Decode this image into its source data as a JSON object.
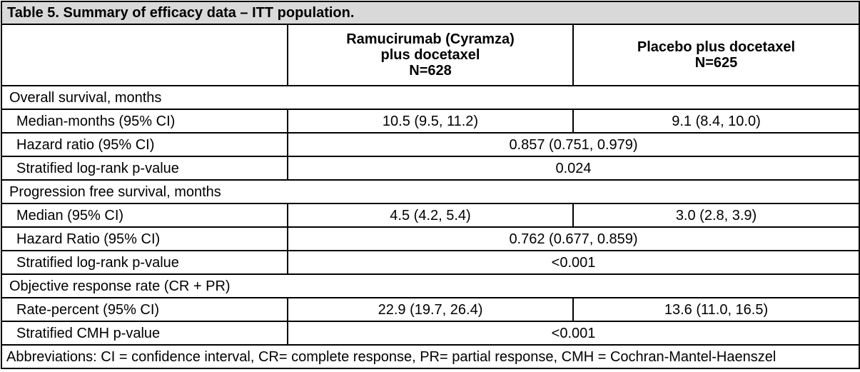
{
  "table": {
    "title": "Table 5. Summary of efficacy data – ITT population.",
    "columns": [
      "",
      {
        "lines": [
          "Ramucirumab (Cyramza)",
          "plus docetaxel",
          "N=628"
        ]
      },
      {
        "lines": [
          "Placebo plus docetaxel",
          "N=625"
        ]
      }
    ],
    "sections": [
      {
        "heading": "Overall survival, months",
        "rows": [
          {
            "label": "Median-months (95% CI)",
            "values": [
              "10.5 (9.5, 11.2)",
              "9.1 (8.4, 10.0)"
            ]
          },
          {
            "label": "Hazard ratio (95% CI)",
            "merged": "0.857 (0.751, 0.979)"
          },
          {
            "label": "Stratified log-rank p-value",
            "merged": "0.024"
          }
        ]
      },
      {
        "heading": "Progression free survival, months",
        "rows": [
          {
            "label": "Median (95% CI)",
            "values": [
              "4.5 (4.2, 5.4)",
              "3.0 (2.8, 3.9)"
            ]
          },
          {
            "label": "Hazard Ratio (95% CI)",
            "merged": "0.762 (0.677, 0.859)"
          },
          {
            "label": "Stratified log-rank p-value",
            "merged": "<0.001"
          }
        ]
      },
      {
        "heading": "Objective response rate (CR + PR)",
        "rows": [
          {
            "label": "Rate-percent (95% CI)",
            "values": [
              "22.9 (19.7, 26.4)",
              "13.6 (11.0, 16.5)"
            ]
          },
          {
            "label": "Stratified CMH p-value",
            "merged": "<0.001"
          }
        ]
      }
    ],
    "footer": "Abbreviations: CI = confidence interval, CR= complete response, PR= partial response, CMH = Cochran-Mantel-Haenszel"
  },
  "colors": {
    "title_background": "#d9d9d9",
    "border": "#000000",
    "text": "#000000"
  }
}
